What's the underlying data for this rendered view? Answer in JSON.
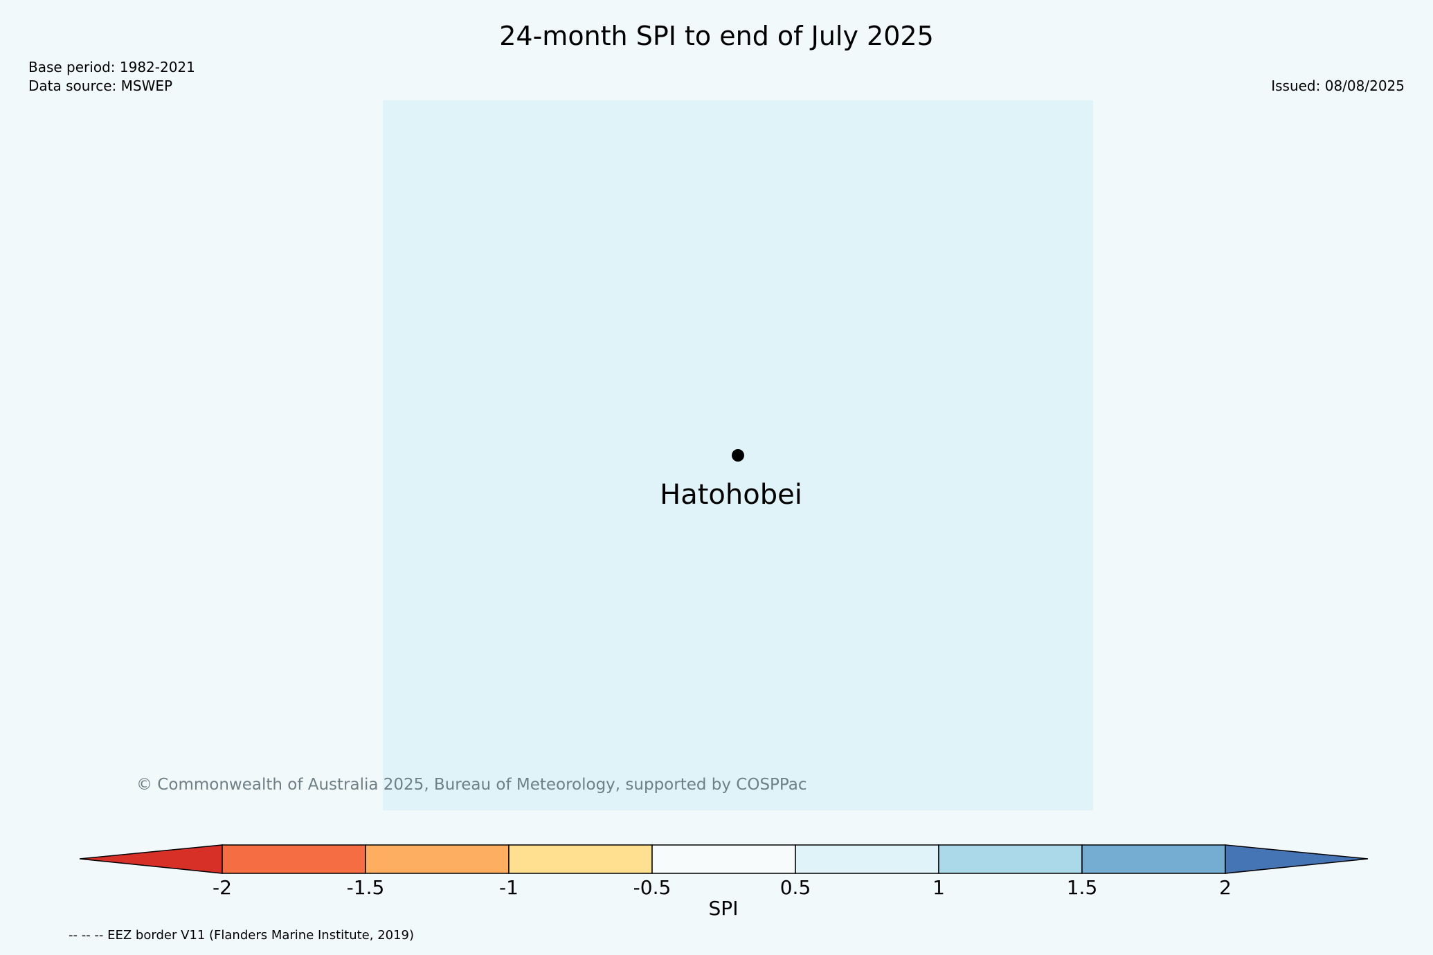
{
  "title": "24-month SPI to end of July 2025",
  "base_period": "Base period: 1982-2021",
  "data_source": "Data source: MSWEP",
  "issued": "Issued: 08/08/2025",
  "map": {
    "background_color": "#e0f3f8",
    "station": {
      "name": "Hatohobei"
    }
  },
  "copyright": "© Commonwealth of Australia 2025, Bureau of Meteorology, supported by COSPPac",
  "legend": {
    "label": "SPI",
    "ticks": [
      "-2",
      "-1.5",
      "-1",
      "-0.5",
      "0.5",
      "1",
      "1.5",
      "2"
    ],
    "colors": {
      "below_min": "#d73027",
      "bins": [
        "#f46d43",
        "#fdae61",
        "#fee090",
        "#f7fbfc",
        "#e0f3f8",
        "#abd9e9",
        "#74add1"
      ],
      "above_max": "#4575b4"
    }
  },
  "eez_note": "-- -- -- EEZ border V11 (Flanders Marine Institute, 2019)"
}
